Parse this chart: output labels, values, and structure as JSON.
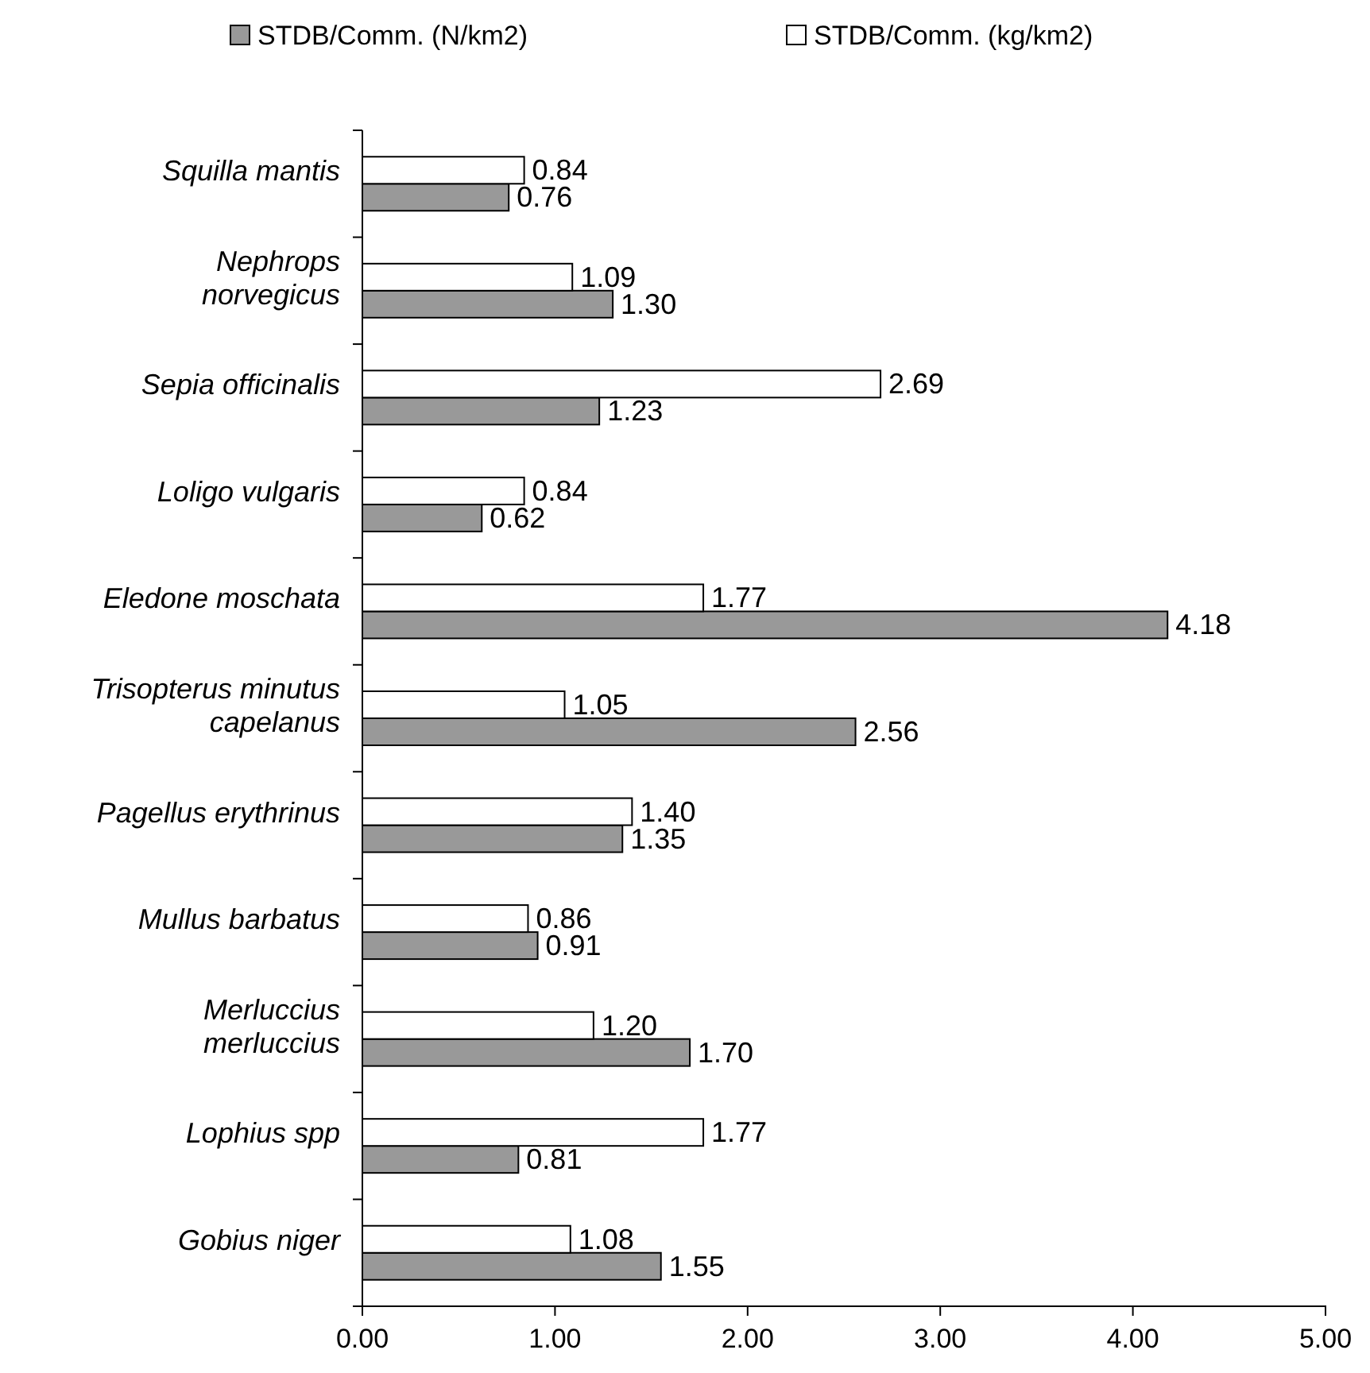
{
  "chart_data": {
    "type": "bar",
    "orientation": "horizontal",
    "categories": [
      "Squilla mantis",
      "Nephrops norvegicus",
      "Sepia officinalis",
      "Loligo vulgaris",
      "Eledone moschata",
      "Trisopterus minutus capelanus",
      "Pagellus erythrinus",
      "Mullus barbatus",
      "Merluccius merluccius",
      "Lophius spp",
      "Gobius niger"
    ],
    "series": [
      {
        "name": "STDB/Comm. (N/km2)",
        "color": "#999999",
        "values": [
          0.76,
          1.3,
          1.23,
          0.62,
          4.18,
          2.56,
          1.35,
          0.91,
          1.7,
          0.81,
          1.55
        ],
        "value_labels": [
          "0.76",
          "1.30",
          "1.23",
          "0.62",
          "4.18",
          "2.56",
          "1.35",
          "0.91",
          "1.70",
          "0.81",
          "1.55"
        ]
      },
      {
        "name": "STDB/Comm. (kg/km2)",
        "color": "#ffffff",
        "values": [
          0.84,
          1.09,
          2.69,
          0.84,
          1.77,
          1.05,
          1.4,
          0.86,
          1.2,
          1.77,
          1.08
        ],
        "value_labels": [
          "0.84",
          "1.09",
          "2.69",
          "0.84",
          "1.77",
          "1.05",
          "1.40",
          "0.86",
          "1.20",
          "1.77",
          "1.08"
        ]
      }
    ],
    "xlim": [
      0,
      5
    ],
    "xticks": [
      {
        "value": 0,
        "label": "0.00"
      },
      {
        "value": 1,
        "label": "1.00"
      },
      {
        "value": 2,
        "label": "2.00"
      },
      {
        "value": 3,
        "label": "3.00"
      },
      {
        "value": 4,
        "label": "4.00"
      },
      {
        "value": 5,
        "label": "5.00"
      }
    ],
    "grid": false,
    "legend": "top"
  }
}
